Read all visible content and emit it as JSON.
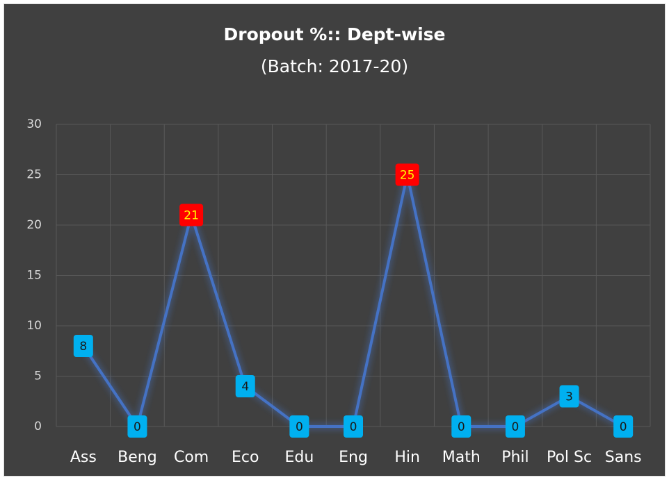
{
  "chart_data": {
    "type": "line",
    "title": "Dropout %:: Dept-wise",
    "subtitle": "(Batch: 2017-20)",
    "categories": [
      "Ass",
      "Beng",
      "Com",
      "Eco",
      "Edu",
      "Eng",
      "Hin",
      "Math",
      "Phil",
      "Pol Sc",
      "Sans"
    ],
    "series": [
      {
        "name": "Dropout %",
        "color": "#4472c4",
        "values": [
          8,
          0,
          21,
          4,
          0,
          0,
          25,
          0,
          0,
          3,
          0
        ]
      }
    ],
    "value_label_colors": [
      "#00b0f0",
      "#00b0f0",
      "#ff0000",
      "#00b0f0",
      "#00b0f0",
      "#00b0f0",
      "#ff0000",
      "#00b0f0",
      "#00b0f0",
      "#00b0f0",
      "#00b0f0"
    ],
    "value_label_text_colors": [
      "#1a1a1a",
      "#1a1a1a",
      "#ffff00",
      "#1a1a1a",
      "#1a1a1a",
      "#1a1a1a",
      "#ffff00",
      "#1a1a1a",
      "#1a1a1a",
      "#1a1a1a",
      "#1a1a1a"
    ],
    "ylim": [
      0,
      30
    ],
    "yticks": [
      0,
      5,
      10,
      15,
      20,
      25,
      30
    ],
    "grid": true
  }
}
